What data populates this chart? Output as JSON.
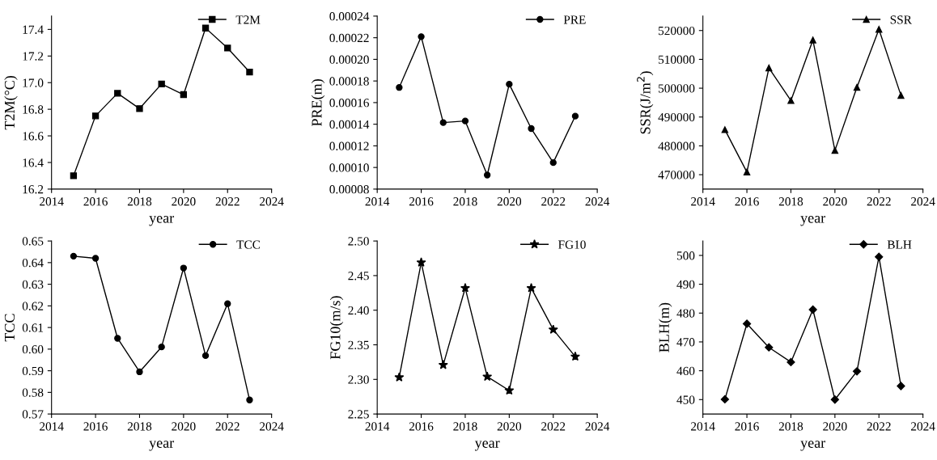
{
  "chart_data": [
    {
      "type": "line",
      "ylabel": "T2M(°C)",
      "xlabel": "year",
      "x": [
        2015,
        2016,
        2017,
        2018,
        2019,
        2020,
        2021,
        2022,
        2023
      ],
      "series": [
        {
          "name": "T2M",
          "color": "#000000",
          "values": [
            16.3,
            16.75,
            16.92,
            16.805,
            16.99,
            16.91,
            17.41,
            17.26,
            17.08
          ]
        }
      ],
      "marker": "square",
      "xlim": [
        2014,
        2024
      ],
      "xticks": [
        2014,
        2016,
        2018,
        2020,
        2022,
        2024
      ],
      "ylim": [
        16.2,
        17.5
      ],
      "yticks": [
        {
          "value": 16.2,
          "label": "16.2"
        },
        {
          "value": 16.4,
          "label": "16.4"
        },
        {
          "value": 16.6,
          "label": "16.6"
        },
        {
          "value": 16.8,
          "label": "16.8"
        },
        {
          "value": 17.0,
          "label": "17.0"
        },
        {
          "value": 17.2,
          "label": "17.2"
        },
        {
          "value": 17.4,
          "label": "17.4"
        }
      ],
      "legend": "top right",
      "grid": false
    },
    {
      "type": "line",
      "ylabel": "PRE(m)",
      "x": [
        2015,
        2016,
        2017,
        2018,
        2019,
        2020,
        2021,
        2022,
        2023
      ],
      "series": [
        {
          "name": "PRE",
          "color": "#000000",
          "values": [
            0.000174,
            0.000221,
            0.0001415,
            0.000143,
            9.3e-05,
            0.000177,
            0.000136,
            0.0001045,
            0.0001475
          ]
        }
      ],
      "marker": "circle",
      "xlim": [
        2014,
        2024
      ],
      "xticks": [
        2014,
        2016,
        2018,
        2020,
        2022,
        2024
      ],
      "ylim": [
        8e-05,
        0.00024
      ],
      "yticks": [
        {
          "value": 8e-05,
          "label": "0.00008"
        },
        {
          "value": 0.0001,
          "label": "0.00010"
        },
        {
          "value": 0.00012,
          "label": "0.00012"
        },
        {
          "value": 0.00014,
          "label": "0.00014"
        },
        {
          "value": 0.00016,
          "label": "0.00016"
        },
        {
          "value": 0.00018,
          "label": "0.00018"
        },
        {
          "value": 0.0002,
          "label": "0.00020"
        },
        {
          "value": 0.00022,
          "label": "0.00022"
        },
        {
          "value": 0.00024,
          "label": "0.00024"
        }
      ],
      "legend": "top right",
      "grid": false
    },
    {
      "type": "line",
      "ylabel": "SSR(J/m$^{2}$)",
      "xlabel": "year",
      "x": [
        2015,
        2016,
        2017,
        2018,
        2019,
        2020,
        2021,
        2022,
        2023
      ],
      "series": [
        {
          "name": "SSR",
          "color": "#000000",
          "values": [
            485600,
            470900,
            507000,
            495700,
            516700,
            478400,
            500300,
            520400,
            497500
          ]
        }
      ],
      "marker": "triangle",
      "xlim": [
        2014,
        2024
      ],
      "xticks": [
        2014,
        2016,
        2018,
        2020,
        2022,
        2024
      ],
      "ylim": [
        465000,
        525000
      ],
      "yticks": [
        470000,
        480000,
        490000,
        500000,
        510000,
        520000
      ],
      "legend": "top right",
      "grid": false
    },
    {
      "type": "line",
      "ylabel": "TCC",
      "xlabel": "year",
      "x": [
        2015,
        2016,
        2017,
        2018,
        2019,
        2020,
        2021,
        2022,
        2023
      ],
      "series": [
        {
          "name": "TCC",
          "color": "#000000",
          "values": [
            0.643,
            0.642,
            0.605,
            0.5895,
            0.601,
            0.6375,
            0.597,
            0.621,
            0.5765
          ]
        }
      ],
      "marker": "circle",
      "xlim": [
        2014,
        2024
      ],
      "xticks": [
        2014,
        2016,
        2018,
        2020,
        2022,
        2024
      ],
      "ylim": [
        0.57,
        0.65
      ],
      "yticks": [
        0.57,
        0.58,
        0.59,
        {
          "value": 0.6,
          "label": "0.60"
        },
        0.61,
        0.62,
        0.63,
        0.64,
        0.65
      ],
      "legend": "top right",
      "grid": false
    },
    {
      "type": "line",
      "ylabel": "FG10(m/s)",
      "xlabel": "year",
      "x": [
        2015,
        2016,
        2017,
        2018,
        2019,
        2020,
        2021,
        2022,
        2023
      ],
      "series": [
        {
          "name": "FG10",
          "color": "#000000",
          "values": [
            2.303,
            2.469,
            2.321,
            2.432,
            2.304,
            2.284,
            2.432,
            2.372,
            2.333
          ]
        }
      ],
      "marker": "star",
      "xlim": [
        2014,
        2024
      ],
      "xticks": [
        2014,
        2016,
        2018,
        2020,
        2022,
        2024
      ],
      "ylim": [
        2.25,
        2.5
      ],
      "yticks": [
        2.25,
        {
          "value": 2.3,
          "label": "2.30"
        },
        2.35,
        {
          "value": 2.4,
          "label": "2.40"
        },
        2.45,
        {
          "value": 2.5,
          "label": "2.50"
        }
      ],
      "legend": "top right",
      "grid": false
    },
    {
      "type": "line",
      "ylabel": "BLH(m)",
      "xlabel": "year",
      "x": [
        2015,
        2016,
        2017,
        2018,
        2019,
        2020,
        2021,
        2022,
        2023
      ],
      "series": [
        {
          "name": "BLH",
          "color": "#000000",
          "values": [
            450.1,
            476.3,
            468.1,
            463.0,
            481.2,
            450.0,
            459.8,
            499.5,
            454.7
          ]
        }
      ],
      "marker": "diamond",
      "xlim": [
        2014,
        2024
      ],
      "xticks": [
        2014,
        2016,
        2018,
        2020,
        2022,
        2024
      ],
      "ylim": [
        445,
        505
      ],
      "yticks": [
        450,
        460,
        470,
        480,
        490,
        500
      ],
      "legend": "top right",
      "grid": false
    }
  ]
}
